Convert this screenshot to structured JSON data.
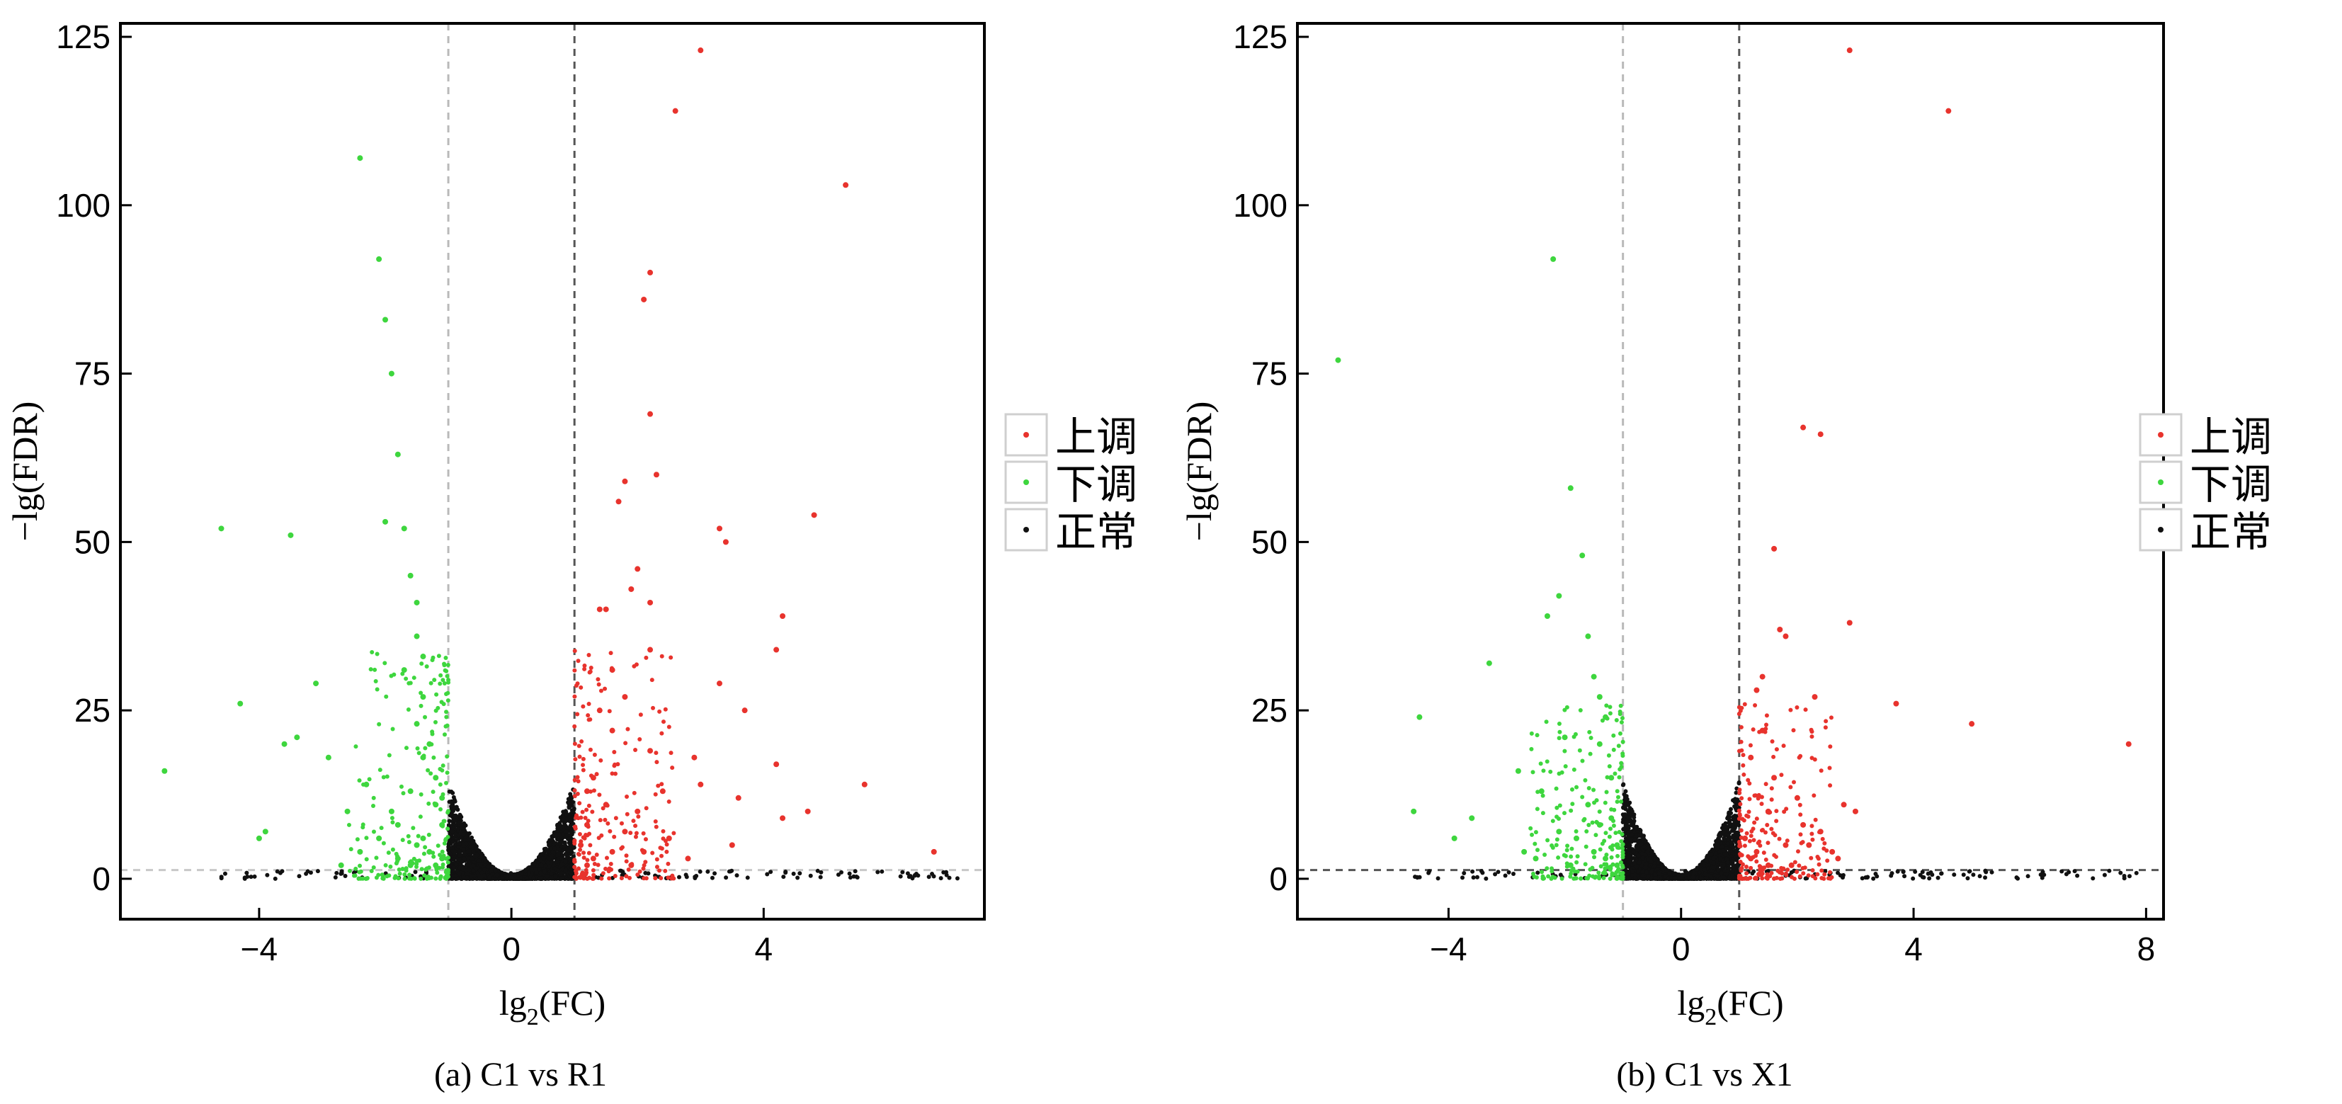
{
  "colors": {
    "up": "#e8332d",
    "down": "#3ed63e",
    "normal": "#111111"
  },
  "legend_labels": [
    "上调",
    "下调",
    "正常"
  ],
  "chart_data": [
    {
      "type": "scatter",
      "caption": "(a) C1 vs R1",
      "xlabel": "lg",
      "xlabel_sub": "2",
      "xlabel_tail": "(FC)",
      "ylabel": "−lg(FDR)",
      "xlim": [
        -6.2,
        7.5
      ],
      "ylim": [
        -6,
        127
      ],
      "xticks": [
        -4,
        0,
        4
      ],
      "xtick_labels": [
        "−4",
        "0",
        "4"
      ],
      "yticks": [
        0,
        25,
        50,
        75,
        100,
        125
      ],
      "ytick_labels": [
        "0",
        "25",
        "50",
        "75",
        "100",
        "125"
      ],
      "vlines": [
        -1,
        1
      ],
      "hline": 1.3,
      "legend_position": "right",
      "series": [
        {
          "name": "上调",
          "color_key": "up",
          "points": [
            [
              3.0,
              123
            ],
            [
              2.6,
              114
            ],
            [
              5.3,
              103
            ],
            [
              2.2,
              90
            ],
            [
              2.1,
              86
            ],
            [
              2.2,
              69
            ],
            [
              2.3,
              60
            ],
            [
              1.8,
              59
            ],
            [
              1.7,
              56
            ],
            [
              3.3,
              52
            ],
            [
              3.4,
              50
            ],
            [
              4.8,
              54
            ],
            [
              2.0,
              46
            ],
            [
              1.9,
              43
            ],
            [
              2.2,
              41
            ],
            [
              1.5,
              40
            ],
            [
              1.4,
              40
            ],
            [
              4.3,
              39
            ],
            [
              2.2,
              34
            ],
            [
              4.2,
              34
            ],
            [
              1.6,
              31
            ],
            [
              3.3,
              29
            ],
            [
              1.8,
              27
            ],
            [
              1.4,
              25
            ],
            [
              3.7,
              25
            ],
            [
              1.6,
              22
            ],
            [
              2.2,
              19
            ],
            [
              2.9,
              18
            ],
            [
              4.2,
              17
            ],
            [
              1.3,
              15
            ],
            [
              3.0,
              14
            ],
            [
              5.6,
              14
            ],
            [
              1.2,
              13
            ],
            [
              2.4,
              13
            ],
            [
              3.6,
              12
            ],
            [
              4.7,
              10
            ],
            [
              1.5,
              11
            ],
            [
              2.0,
              10
            ],
            [
              4.3,
              9
            ],
            [
              6.7,
              4
            ],
            [
              1.2,
              8
            ],
            [
              1.8,
              7
            ],
            [
              2.5,
              6
            ],
            [
              1.1,
              5
            ],
            [
              1.6,
              4
            ],
            [
              1.3,
              3
            ],
            [
              2.8,
              3
            ],
            [
              1.2,
              2
            ],
            [
              1.9,
              2
            ],
            [
              3.5,
              5
            ],
            [
              2.1,
              4
            ]
          ]
        },
        {
          "name": "下调",
          "color_key": "down",
          "points": [
            [
              -2.4,
              107
            ],
            [
              -2.1,
              92
            ],
            [
              -2.0,
              83
            ],
            [
              -1.9,
              75
            ],
            [
              -1.8,
              63
            ],
            [
              -4.6,
              52
            ],
            [
              -3.5,
              51
            ],
            [
              -2.0,
              53
            ],
            [
              -1.7,
              52
            ],
            [
              -1.6,
              45
            ],
            [
              -1.5,
              41
            ],
            [
              -1.5,
              36
            ],
            [
              -1.4,
              33
            ],
            [
              -1.7,
              31
            ],
            [
              -3.1,
              29
            ],
            [
              -4.3,
              26
            ],
            [
              -1.4,
              27
            ],
            [
              -1.5,
              23
            ],
            [
              -3.4,
              21
            ],
            [
              -3.6,
              20
            ],
            [
              -1.3,
              20
            ],
            [
              -2.9,
              18
            ],
            [
              -1.4,
              18
            ],
            [
              -5.5,
              16
            ],
            [
              -1.2,
              15
            ],
            [
              -2.3,
              14
            ],
            [
              -1.6,
              13
            ],
            [
              -1.2,
              11
            ],
            [
              -2.6,
              10
            ],
            [
              -3.9,
              7
            ],
            [
              -4.0,
              6
            ],
            [
              -1.8,
              8
            ],
            [
              -1.1,
              8
            ],
            [
              -2.1,
              6
            ],
            [
              -1.5,
              5
            ],
            [
              -1.3,
              4
            ],
            [
              -2.4,
              4
            ],
            [
              -1.1,
              3
            ],
            [
              -1.8,
              3
            ],
            [
              -1.2,
              2
            ],
            [
              -2.7,
              2
            ],
            [
              -1.6,
              2
            ],
            [
              -1.4,
              6
            ],
            [
              -1.1,
              12
            ],
            [
              -1.9,
              10
            ]
          ]
        }
      ]
    },
    {
      "type": "scatter",
      "caption": "(b) C1 vs X1",
      "xlabel": "lg",
      "xlabel_sub": "2",
      "xlabel_tail": "(FC)",
      "ylabel": "−lg(FDR)",
      "xlim": [
        -6.6,
        8.3
      ],
      "ylim": [
        -6,
        127
      ],
      "xticks": [
        -4,
        0,
        4,
        8
      ],
      "xtick_labels": [
        "−4",
        "0",
        "4",
        "8"
      ],
      "yticks": [
        0,
        25,
        50,
        75,
        100,
        125
      ],
      "ytick_labels": [
        "0",
        "25",
        "50",
        "75",
        "100",
        "125"
      ],
      "vlines": [
        -1,
        1
      ],
      "hline": 1.3,
      "legend_position": "right",
      "series": [
        {
          "name": "上调",
          "color_key": "up",
          "points": [
            [
              2.9,
              123
            ],
            [
              4.6,
              114
            ],
            [
              2.1,
              67
            ],
            [
              2.4,
              66
            ],
            [
              1.6,
              49
            ],
            [
              2.9,
              38
            ],
            [
              1.7,
              37
            ],
            [
              1.8,
              36
            ],
            [
              1.4,
              30
            ],
            [
              1.3,
              28
            ],
            [
              2.3,
              27
            ],
            [
              3.7,
              26
            ],
            [
              5.0,
              23
            ],
            [
              7.7,
              20
            ],
            [
              1.4,
              22
            ],
            [
              1.2,
              18
            ],
            [
              1.6,
              15
            ],
            [
              2.0,
              12
            ],
            [
              2.8,
              11
            ],
            [
              3.0,
              10
            ],
            [
              1.5,
              10
            ],
            [
              2.1,
              8
            ],
            [
              2.4,
              7
            ],
            [
              1.1,
              6
            ],
            [
              1.8,
              5
            ],
            [
              1.3,
              4
            ],
            [
              2.6,
              4
            ],
            [
              1.2,
              3
            ],
            [
              1.9,
              2
            ],
            [
              1.5,
              2
            ],
            [
              2.7,
              3
            ],
            [
              2.2,
              5
            ]
          ]
        },
        {
          "name": "下调",
          "color_key": "down",
          "points": [
            [
              -5.9,
              77
            ],
            [
              -2.2,
              92
            ],
            [
              -1.9,
              58
            ],
            [
              -1.7,
              48
            ],
            [
              -2.1,
              42
            ],
            [
              -2.3,
              39
            ],
            [
              -1.6,
              36
            ],
            [
              -1.5,
              30
            ],
            [
              -3.3,
              32
            ],
            [
              -1.4,
              27
            ],
            [
              -1.3,
              24
            ],
            [
              -4.5,
              24
            ],
            [
              -2.0,
              21
            ],
            [
              -1.4,
              20
            ],
            [
              -2.8,
              16
            ],
            [
              -1.2,
              15
            ],
            [
              -2.4,
              13
            ],
            [
              -1.6,
              11
            ],
            [
              -4.6,
              10
            ],
            [
              -3.6,
              9
            ],
            [
              -1.2,
              9
            ],
            [
              -2.1,
              7
            ],
            [
              -1.8,
              6
            ],
            [
              -1.1,
              5
            ],
            [
              -2.7,
              4
            ],
            [
              -1.5,
              4
            ],
            [
              -1.3,
              3
            ],
            [
              -3.9,
              6
            ],
            [
              -1.1,
              2
            ],
            [
              -1.9,
              2
            ],
            [
              -2.5,
              3
            ],
            [
              -1.4,
              8
            ]
          ]
        }
      ]
    }
  ]
}
